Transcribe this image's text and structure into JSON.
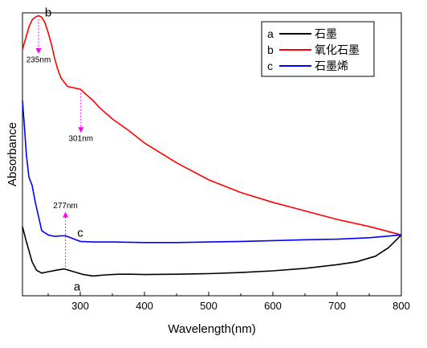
{
  "chart_data": {
    "type": "line",
    "xlabel": "Wavelength(nm)",
    "ylabel": "Absorbance",
    "xlim": [
      210,
      800
    ],
    "ylim": [
      0,
      1
    ],
    "x_ticks": [
      300,
      400,
      500,
      600,
      700,
      800
    ],
    "y_ticks_shown": false,
    "grid": false,
    "legend_position": "top-right",
    "series": [
      {
        "key": "a",
        "name": "石墨",
        "color": "#000000",
        "x": [
          210,
          215,
          220,
          225,
          232,
          240,
          250,
          262,
          275,
          290,
          305,
          320,
          340,
          360,
          380,
          400,
          450,
          500,
          550,
          600,
          650,
          700,
          730,
          760,
          780,
          800
        ],
        "y": [
          0.245,
          0.2,
          0.16,
          0.12,
          0.09,
          0.08,
          0.085,
          0.09,
          0.095,
          0.085,
          0.075,
          0.07,
          0.074,
          0.076,
          0.076,
          0.075,
          0.076,
          0.078,
          0.082,
          0.088,
          0.097,
          0.11,
          0.12,
          0.14,
          0.17,
          0.215
        ]
      },
      {
        "key": "b",
        "name": "氧化石墨",
        "color": "#ff0000",
        "x": [
          210,
          215,
          220,
          225,
          230,
          235,
          240,
          245,
          250,
          255,
          260,
          265,
          270,
          280,
          290,
          300,
          310,
          320,
          330,
          350,
          375,
          400,
          450,
          500,
          550,
          600,
          650,
          700,
          750,
          800
        ],
        "y": [
          0.87,
          0.91,
          0.95,
          0.975,
          0.985,
          0.99,
          0.985,
          0.965,
          0.93,
          0.89,
          0.84,
          0.8,
          0.77,
          0.74,
          0.735,
          0.73,
          0.71,
          0.69,
          0.665,
          0.625,
          0.585,
          0.54,
          0.47,
          0.41,
          0.365,
          0.33,
          0.3,
          0.27,
          0.245,
          0.215
        ]
      },
      {
        "key": "c",
        "name": "石墨烯",
        "color": "#0000ff",
        "x": [
          210,
          213,
          216,
          220,
          225,
          230,
          235,
          240,
          250,
          260,
          270,
          277,
          285,
          300,
          320,
          350,
          400,
          450,
          500,
          550,
          600,
          650,
          700,
          750,
          800
        ],
        "y": [
          0.69,
          0.6,
          0.5,
          0.42,
          0.39,
          0.33,
          0.28,
          0.23,
          0.215,
          0.21,
          0.212,
          0.212,
          0.205,
          0.192,
          0.19,
          0.19,
          0.188,
          0.188,
          0.19,
          0.192,
          0.195,
          0.198,
          0.2,
          0.205,
          0.215
        ]
      }
    ],
    "annotations": [
      {
        "text": "235nm",
        "x": 235,
        "direction": "down"
      },
      {
        "text": "301nm",
        "x": 301,
        "direction": "down"
      },
      {
        "text": "277nm",
        "x": 277,
        "direction": "up"
      }
    ],
    "curve_labels": [
      "a",
      "b",
      "c"
    ]
  }
}
